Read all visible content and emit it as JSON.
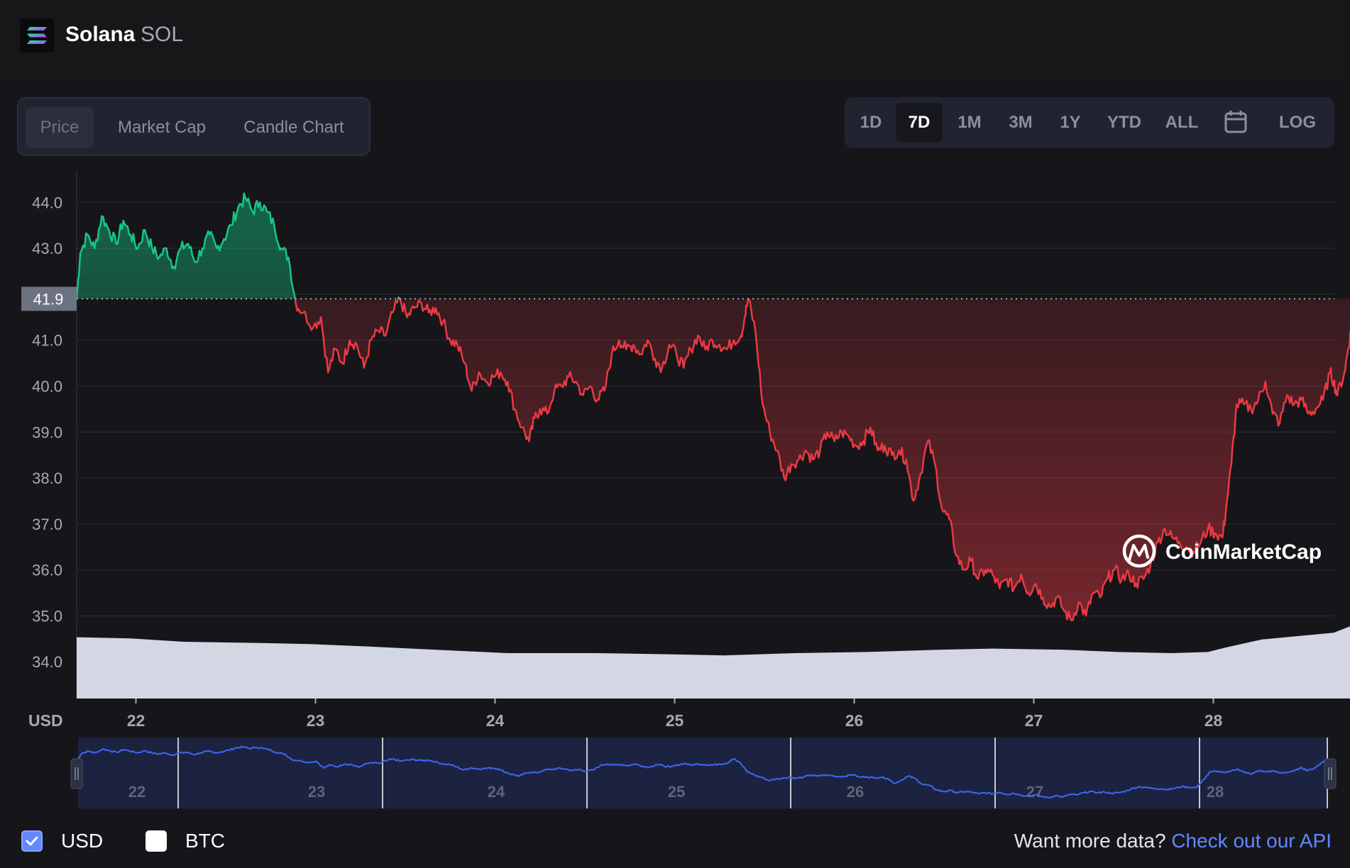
{
  "header": {
    "coin_name": "Solana",
    "coin_symbol": "SOL",
    "logo_icon": "solana-logo-icon"
  },
  "view_tabs": [
    {
      "label": "Price",
      "active": true
    },
    {
      "label": "Market Cap",
      "active": false
    },
    {
      "label": "Candle Chart",
      "active": false
    }
  ],
  "range_buttons": [
    {
      "label": "1D",
      "active": false
    },
    {
      "label": "7D",
      "active": true
    },
    {
      "label": "1M",
      "active": false
    },
    {
      "label": "3M",
      "active": false
    },
    {
      "label": "1Y",
      "active": false
    },
    {
      "label": "YTD",
      "active": false
    },
    {
      "label": "ALL",
      "active": false
    },
    {
      "label": "",
      "icon": "calendar-icon",
      "active": false
    },
    {
      "label": "LOG",
      "active": false
    }
  ],
  "colors": {
    "up": "#16c784",
    "down": "#ea3943",
    "volume": "#d3d7e4",
    "navigator_line": "#3c67f2",
    "accent_link": "#6188ff"
  },
  "watermark": "CoinMarketCap",
  "chart_data": {
    "type": "line",
    "currency_label": "USD",
    "y_ticks": [
      44.0,
      43.0,
      42.0,
      41.0,
      40.0,
      39.0,
      38.0,
      37.0,
      36.0,
      35.0,
      34.0
    ],
    "y_tick_labels": [
      "44.0",
      "43.0",
      "",
      "41.0",
      "40.0",
      "39.0",
      "38.0",
      "37.0",
      "36.0",
      "35.0",
      "34.0"
    ],
    "ylim": [
      33.2,
      44.7
    ],
    "x_ticks": [
      "22",
      "23",
      "24",
      "25",
      "26",
      "27",
      "28"
    ],
    "x_tick_pos": [
      0.33,
      1.33,
      2.33,
      3.33,
      4.33,
      5.33,
      6.33
    ],
    "xlim": [
      0,
      7.0
    ],
    "current_price": 41.9,
    "current_price_label": "41.9",
    "baseline": 41.9,
    "points": [
      [
        0.0,
        41.9
      ],
      [
        0.02,
        42.9
      ],
      [
        0.06,
        43.3
      ],
      [
        0.1,
        43.0
      ],
      [
        0.14,
        43.7
      ],
      [
        0.18,
        43.4
      ],
      [
        0.22,
        43.1
      ],
      [
        0.26,
        43.6
      ],
      [
        0.3,
        43.3
      ],
      [
        0.34,
        43.0
      ],
      [
        0.38,
        43.4
      ],
      [
        0.42,
        43.0
      ],
      [
        0.46,
        42.8
      ],
      [
        0.5,
        43.0
      ],
      [
        0.54,
        42.6
      ],
      [
        0.58,
        43.0
      ],
      [
        0.62,
        43.1
      ],
      [
        0.66,
        42.7
      ],
      [
        0.7,
        43.0
      ],
      [
        0.74,
        43.3
      ],
      [
        0.78,
        43.0
      ],
      [
        0.82,
        43.2
      ],
      [
        0.86,
        43.5
      ],
      [
        0.9,
        43.9
      ],
      [
        0.94,
        44.1
      ],
      [
        0.98,
        43.8
      ],
      [
        1.02,
        44.0
      ],
      [
        1.06,
        43.8
      ],
      [
        1.1,
        43.5
      ],
      [
        1.14,
        43.0
      ],
      [
        1.18,
        42.8
      ],
      [
        1.22,
        41.8
      ],
      [
        1.26,
        41.6
      ],
      [
        1.32,
        41.3
      ],
      [
        1.36,
        41.5
      ],
      [
        1.4,
        40.3
      ],
      [
        1.44,
        40.8
      ],
      [
        1.48,
        40.5
      ],
      [
        1.52,
        41.0
      ],
      [
        1.56,
        40.9
      ],
      [
        1.6,
        40.4
      ],
      [
        1.64,
        41.0
      ],
      [
        1.68,
        41.2
      ],
      [
        1.72,
        41.1
      ],
      [
        1.76,
        41.6
      ],
      [
        1.8,
        41.9
      ],
      [
        1.84,
        41.5
      ],
      [
        1.88,
        41.7
      ],
      [
        1.92,
        41.8
      ],
      [
        1.96,
        41.6
      ],
      [
        2.0,
        41.7
      ],
      [
        2.04,
        41.4
      ],
      [
        2.08,
        41.0
      ],
      [
        2.12,
        40.9
      ],
      [
        2.16,
        40.5
      ],
      [
        2.2,
        39.9
      ],
      [
        2.24,
        40.3
      ],
      [
        2.28,
        40.1
      ],
      [
        2.32,
        40.2
      ],
      [
        2.36,
        40.3
      ],
      [
        2.4,
        40.1
      ],
      [
        2.44,
        39.5
      ],
      [
        2.48,
        39.1
      ],
      [
        2.52,
        38.8
      ],
      [
        2.55,
        39.3
      ],
      [
        2.58,
        39.5
      ],
      [
        2.62,
        39.4
      ],
      [
        2.66,
        39.9
      ],
      [
        2.7,
        40.0
      ],
      [
        2.74,
        40.2
      ],
      [
        2.78,
        40.1
      ],
      [
        2.82,
        39.8
      ],
      [
        2.86,
        40.0
      ],
      [
        2.9,
        39.7
      ],
      [
        2.94,
        39.9
      ],
      [
        2.98,
        40.7
      ],
      [
        3.02,
        41.0
      ],
      [
        3.06,
        40.8
      ],
      [
        3.1,
        40.9
      ],
      [
        3.14,
        40.7
      ],
      [
        3.18,
        41.0
      ],
      [
        3.22,
        40.6
      ],
      [
        3.26,
        40.4
      ],
      [
        3.3,
        40.9
      ],
      [
        3.34,
        40.7
      ],
      [
        3.38,
        40.4
      ],
      [
        3.42,
        40.8
      ],
      [
        3.46,
        41.1
      ],
      [
        3.5,
        40.8
      ],
      [
        3.54,
        41.0
      ],
      [
        3.58,
        40.9
      ],
      [
        3.62,
        40.8
      ],
      [
        3.66,
        41.0
      ],
      [
        3.7,
        41.1
      ],
      [
        3.72,
        41.5
      ],
      [
        3.74,
        41.9
      ],
      [
        3.78,
        41.2
      ],
      [
        3.82,
        39.6
      ],
      [
        3.86,
        39.0
      ],
      [
        3.9,
        38.6
      ],
      [
        3.94,
        38.0
      ],
      [
        3.98,
        38.3
      ],
      [
        4.02,
        38.4
      ],
      [
        4.06,
        38.6
      ],
      [
        4.1,
        38.4
      ],
      [
        4.14,
        38.6
      ],
      [
        4.18,
        39.0
      ],
      [
        4.22,
        38.8
      ],
      [
        4.26,
        39.0
      ],
      [
        4.3,
        38.9
      ],
      [
        4.34,
        38.7
      ],
      [
        4.38,
        38.8
      ],
      [
        4.42,
        39.1
      ],
      [
        4.46,
        38.6
      ],
      [
        4.5,
        38.7
      ],
      [
        4.54,
        38.5
      ],
      [
        4.58,
        38.6
      ],
      [
        4.62,
        38.4
      ],
      [
        4.66,
        37.5
      ],
      [
        4.7,
        38.1
      ],
      [
        4.74,
        38.8
      ],
      [
        4.78,
        38.3
      ],
      [
        4.82,
        37.3
      ],
      [
        4.86,
        37.1
      ],
      [
        4.9,
        36.3
      ],
      [
        4.94,
        36.0
      ],
      [
        4.98,
        36.2
      ],
      [
        5.02,
        35.8
      ],
      [
        5.06,
        36.0
      ],
      [
        5.1,
        35.9
      ],
      [
        5.14,
        35.6
      ],
      [
        5.18,
        35.8
      ],
      [
        5.22,
        35.6
      ],
      [
        5.26,
        35.9
      ],
      [
        5.3,
        35.5
      ],
      [
        5.34,
        35.7
      ],
      [
        5.38,
        35.4
      ],
      [
        5.42,
        35.2
      ],
      [
        5.46,
        35.4
      ],
      [
        5.5,
        35.1
      ],
      [
        5.54,
        34.9
      ],
      [
        5.58,
        35.3
      ],
      [
        5.62,
        35.0
      ],
      [
        5.66,
        35.5
      ],
      [
        5.7,
        35.4
      ],
      [
        5.74,
        35.8
      ],
      [
        5.78,
        36.0
      ],
      [
        5.82,
        35.8
      ],
      [
        5.86,
        35.9
      ],
      [
        5.9,
        35.7
      ],
      [
        5.94,
        35.8
      ],
      [
        5.98,
        36.1
      ],
      [
        6.02,
        36.6
      ],
      [
        6.06,
        36.9
      ],
      [
        6.1,
        36.7
      ],
      [
        6.14,
        36.6
      ],
      [
        6.18,
        36.5
      ],
      [
        6.22,
        36.4
      ],
      [
        6.26,
        36.6
      ],
      [
        6.3,
        36.9
      ],
      [
        6.34,
        36.8
      ],
      [
        6.38,
        36.7
      ],
      [
        6.4,
        37.3
      ],
      [
        6.43,
        38.3
      ],
      [
        6.46,
        39.6
      ],
      [
        6.5,
        39.6
      ],
      [
        6.54,
        39.5
      ],
      [
        6.58,
        39.7
      ],
      [
        6.62,
        40.1
      ],
      [
        6.66,
        39.4
      ],
      [
        6.7,
        39.2
      ],
      [
        6.74,
        39.8
      ],
      [
        6.78,
        39.6
      ],
      [
        6.82,
        39.7
      ],
      [
        6.86,
        39.4
      ],
      [
        6.9,
        39.5
      ],
      [
        6.94,
        39.7
      ],
      [
        6.98,
        40.3
      ],
      [
        7.0,
        40.1
      ],
      [
        7.02,
        39.8
      ],
      [
        7.06,
        40.3
      ],
      [
        7.08,
        40.8
      ],
      [
        7.1,
        41.3
      ],
      [
        7.13,
        41.9
      ]
    ],
    "volume_points": [
      [
        0.0,
        0.54
      ],
      [
        0.3,
        0.53
      ],
      [
        0.6,
        0.5
      ],
      [
        1.0,
        0.49
      ],
      [
        1.3,
        0.48
      ],
      [
        1.6,
        0.46
      ],
      [
        2.0,
        0.43
      ],
      [
        2.4,
        0.4
      ],
      [
        2.9,
        0.4
      ],
      [
        3.3,
        0.39
      ],
      [
        3.6,
        0.38
      ],
      [
        4.0,
        0.4
      ],
      [
        4.4,
        0.41
      ],
      [
        4.8,
        0.43
      ],
      [
        5.1,
        0.44
      ],
      [
        5.5,
        0.43
      ],
      [
        5.8,
        0.41
      ],
      [
        6.1,
        0.4
      ],
      [
        6.3,
        0.41
      ],
      [
        6.4,
        0.45
      ],
      [
        6.6,
        0.52
      ],
      [
        6.8,
        0.55
      ],
      [
        7.0,
        0.58
      ],
      [
        7.13,
        0.66
      ]
    ],
    "navigator": {
      "x_ticks": [
        "22",
        "23",
        "24",
        "25",
        "26",
        "27",
        "28"
      ]
    }
  },
  "footer": {
    "usd_label": "USD",
    "usd_checked": true,
    "btc_label": "BTC",
    "btc_checked": false,
    "api_prompt": "Want more data?",
    "api_link": "Check out our API"
  }
}
